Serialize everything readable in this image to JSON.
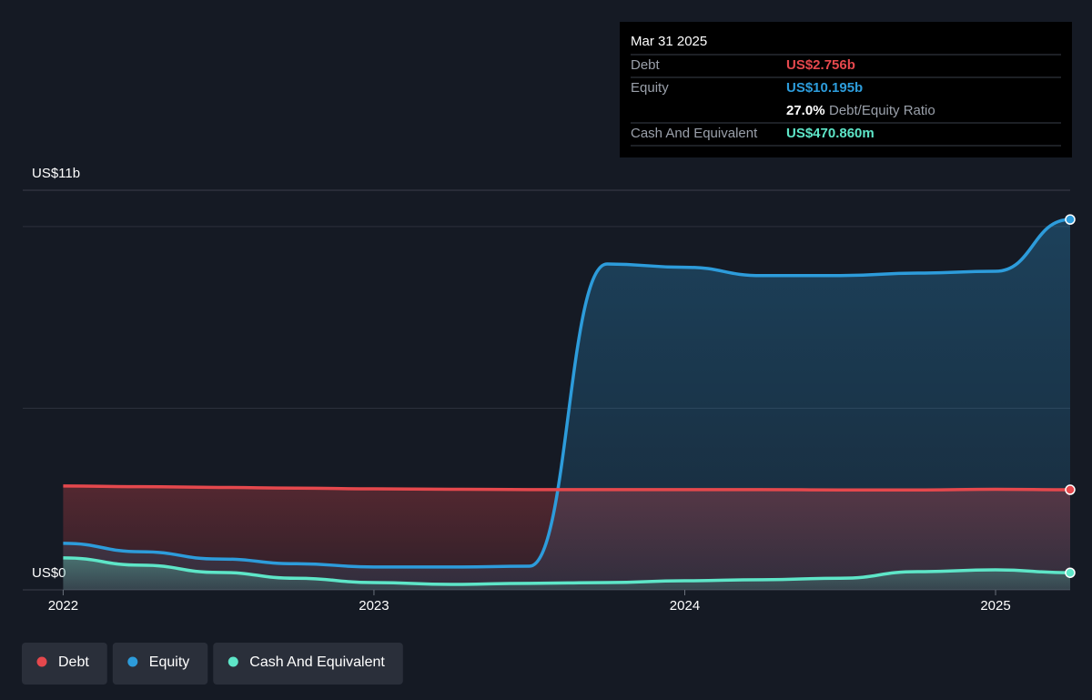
{
  "chart_data": {
    "type": "area-line",
    "x": [
      2022,
      2022.25,
      2022.5,
      2022.75,
      2023,
      2023.25,
      2023.5,
      2023.75,
      2024,
      2024.25,
      2024.5,
      2024.75,
      2025,
      2025.24
    ],
    "series": [
      {
        "name": "Debt",
        "color": "#e5484d",
        "values": [
          2.86,
          2.84,
          2.82,
          2.8,
          2.78,
          2.77,
          2.76,
          2.76,
          2.76,
          2.76,
          2.75,
          2.75,
          2.77,
          2.756
        ]
      },
      {
        "name": "Equity",
        "color": "#2d9cdb",
        "values": [
          1.28,
          1.05,
          0.85,
          0.72,
          0.63,
          0.63,
          0.65,
          8.97,
          8.88,
          8.65,
          8.65,
          8.72,
          8.77,
          10.195
        ]
      },
      {
        "name": "Cash And Equivalent",
        "color": "#5ee6c8",
        "values": [
          0.88,
          0.68,
          0.48,
          0.32,
          0.2,
          0.15,
          0.18,
          0.2,
          0.25,
          0.28,
          0.32,
          0.5,
          0.55,
          0.471
        ]
      }
    ],
    "xlim": [
      2021.87,
      2025.24
    ],
    "xticks": [
      2022,
      2023,
      2024,
      2025
    ],
    "ylim": [
      0,
      11
    ],
    "yticks": [
      {
        "value": 0,
        "label": "US$0"
      },
      {
        "value": 11,
        "label": "US$11b"
      }
    ],
    "ygrid": [
      5,
      10
    ],
    "tooltip": {
      "date": "Mar 31 2025",
      "rows": [
        {
          "label": "Debt",
          "value": "US$2.756b"
        },
        {
          "label": "Equity",
          "value": "US$10.195b"
        }
      ],
      "ratio": {
        "value": "27.0%",
        "label": "Debt/Equity Ratio"
      },
      "cash": {
        "label": "Cash And Equivalent",
        "value": "US$470.860m"
      }
    }
  }
}
